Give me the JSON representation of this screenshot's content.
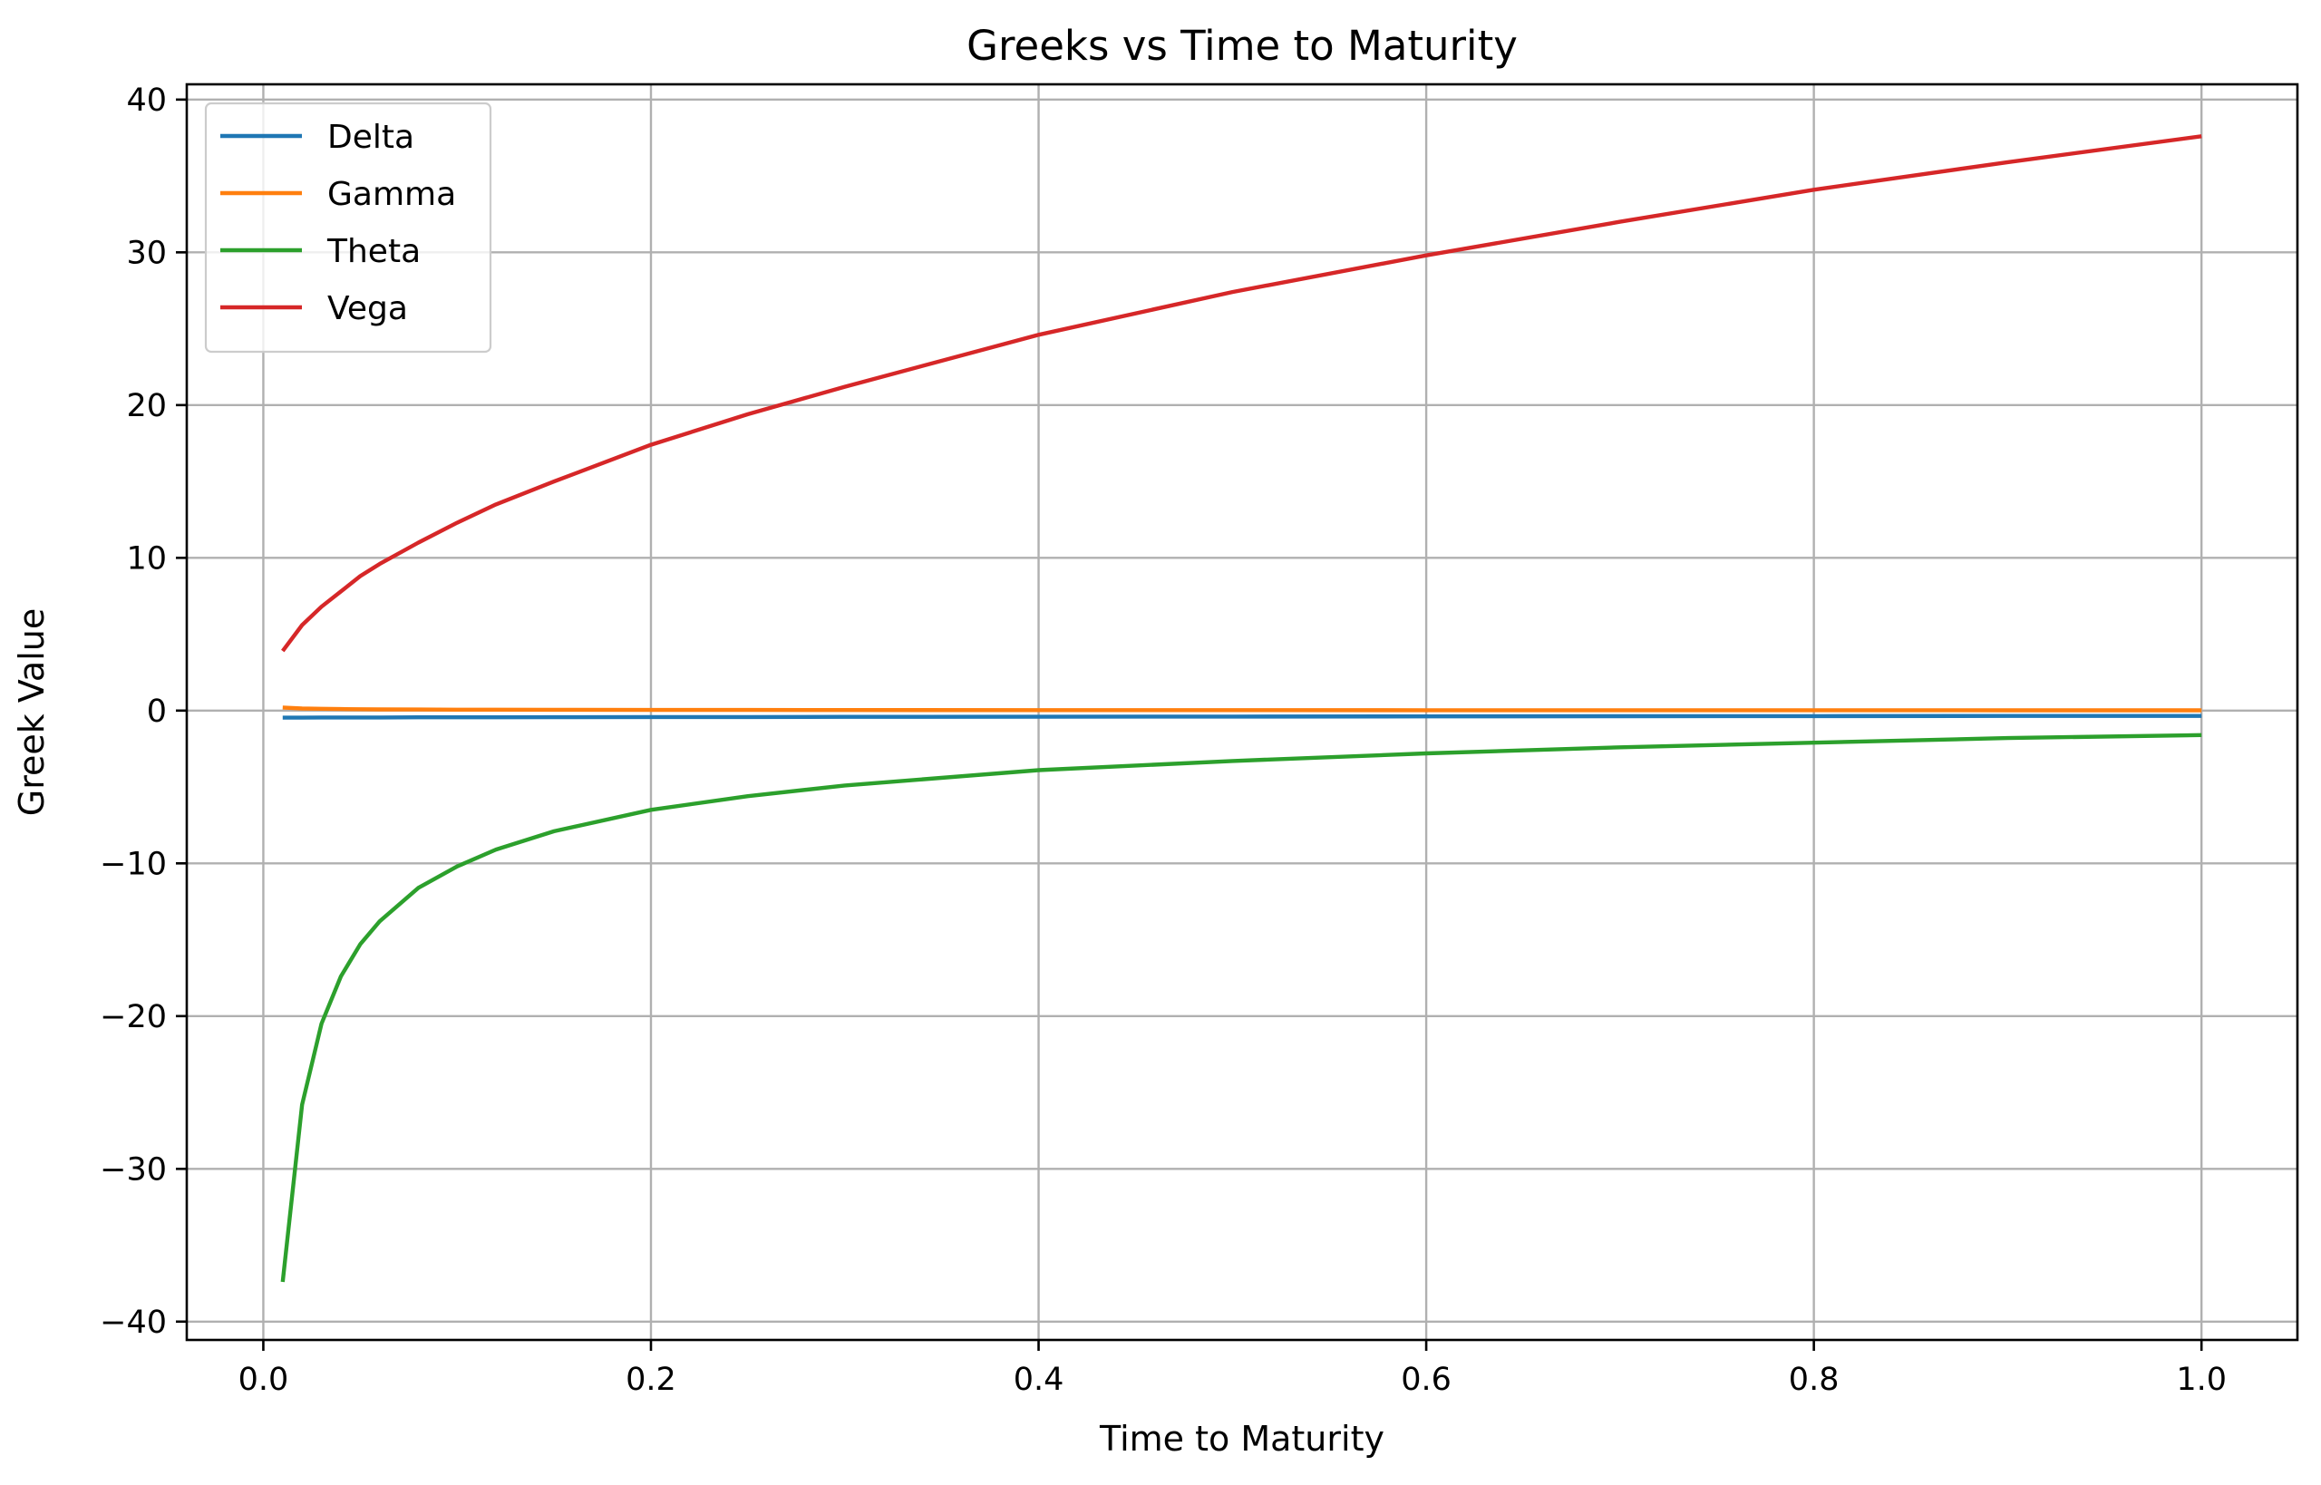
{
  "chart_data": {
    "type": "line",
    "title": "Greeks vs Time to Maturity",
    "xlabel": "Time to Maturity",
    "ylabel": "Greek Value",
    "xlim": [
      -0.0395,
      1.0495
    ],
    "ylim": [
      -41.2,
      41.0
    ],
    "xticks": [
      0.0,
      0.2,
      0.4,
      0.6,
      0.8,
      1.0
    ],
    "xtick_labels": [
      "0.0",
      "0.2",
      "0.4",
      "0.6",
      "0.8",
      "1.0"
    ],
    "yticks": [
      -40,
      -30,
      -20,
      -10,
      0,
      10,
      20,
      30,
      40
    ],
    "ytick_labels": [
      "−40",
      "−30",
      "−20",
      "−10",
      "0",
      "10",
      "20",
      "30",
      "40"
    ],
    "grid": true,
    "legend_position": "top-left",
    "x": [
      0.01,
      0.02,
      0.03,
      0.04,
      0.05,
      0.06,
      0.08,
      0.1,
      0.12,
      0.15,
      0.2,
      0.25,
      0.3,
      0.4,
      0.5,
      0.6,
      0.7,
      0.8,
      0.9,
      1.0
    ],
    "series": [
      {
        "name": "Delta",
        "color": "#1f77b4",
        "values": [
          -0.46,
          -0.46,
          -0.45,
          -0.45,
          -0.45,
          -0.45,
          -0.44,
          -0.44,
          -0.44,
          -0.43,
          -0.42,
          -0.42,
          -0.41,
          -0.4,
          -0.39,
          -0.38,
          -0.37,
          -0.36,
          -0.35,
          -0.35
        ]
      },
      {
        "name": "Gamma",
        "color": "#ff7f0e",
        "values": [
          0.2,
          0.14,
          0.12,
          0.1,
          0.09,
          0.08,
          0.07,
          0.06,
          0.058,
          0.052,
          0.045,
          0.04,
          0.037,
          0.032,
          0.028,
          0.026,
          0.024,
          0.022,
          0.021,
          0.02
        ]
      },
      {
        "name": "Theta",
        "color": "#2ca02c",
        "values": [
          -37.4,
          -25.8,
          -20.5,
          -17.4,
          -15.3,
          -13.8,
          -11.6,
          -10.2,
          -9.1,
          -7.9,
          -6.5,
          -5.6,
          -4.9,
          -3.9,
          -3.3,
          -2.8,
          -2.4,
          -2.1,
          -1.8,
          -1.6
        ]
      },
      {
        "name": "Vega",
        "color": "#d62728",
        "values": [
          3.9,
          5.6,
          6.8,
          7.8,
          8.8,
          9.6,
          11.0,
          12.3,
          13.5,
          15.0,
          17.4,
          19.4,
          21.2,
          24.6,
          27.4,
          29.8,
          32.0,
          34.1,
          35.9,
          37.6
        ]
      }
    ]
  }
}
